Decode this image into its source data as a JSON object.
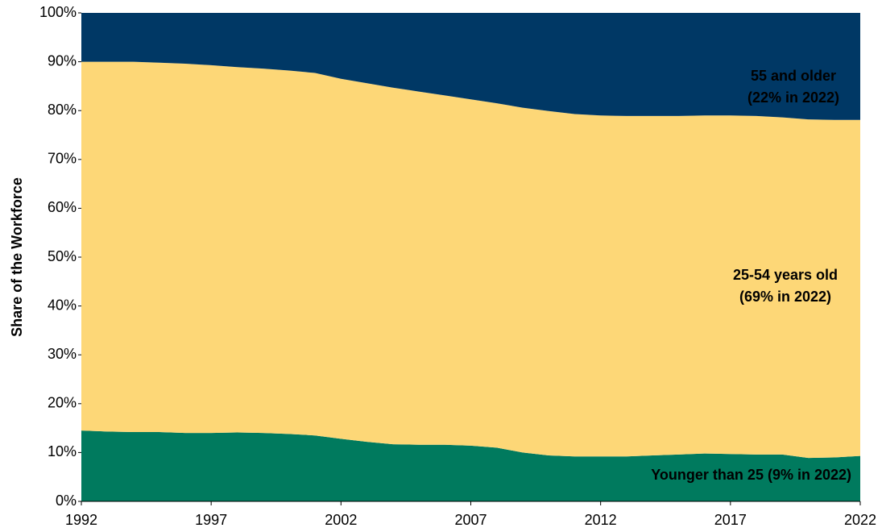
{
  "chart_data": {
    "type": "stacked_area",
    "y_label": "Share of the Workforce",
    "x": [
      1992,
      1993,
      1994,
      1995,
      1996,
      1997,
      1998,
      1999,
      2000,
      2001,
      2002,
      2003,
      2004,
      2005,
      2006,
      2007,
      2008,
      2009,
      2010,
      2011,
      2012,
      2013,
      2014,
      2015,
      2016,
      2017,
      2018,
      2019,
      2020,
      2021,
      2022
    ],
    "series": [
      {
        "name": "Younger than 25",
        "color": "#007a5e",
        "annotation": "(9% in 2022)",
        "values": [
          14.5,
          14.3,
          14.2,
          14.2,
          14.0,
          14.0,
          14.1,
          14.0,
          13.8,
          13.5,
          12.8,
          12.2,
          11.7,
          11.6,
          11.6,
          11.4,
          11.0,
          10.0,
          9.4,
          9.2,
          9.2,
          9.2,
          9.4,
          9.6,
          9.8,
          9.7,
          9.6,
          9.6,
          8.9,
          9.0,
          9.3
        ]
      },
      {
        "name": "25-54 years old",
        "color": "#fdd777",
        "annotation": "(69% in 2022)",
        "values": [
          75.5,
          75.7,
          75.8,
          75.6,
          75.6,
          75.3,
          74.8,
          74.6,
          74.4,
          74.2,
          73.7,
          73.4,
          73.0,
          72.3,
          71.5,
          70.9,
          70.5,
          70.6,
          70.5,
          70.1,
          69.8,
          69.7,
          69.5,
          69.3,
          69.2,
          69.3,
          69.3,
          69.0,
          69.3,
          69.1,
          68.8
        ]
      },
      {
        "name": "55 and older",
        "color": "#003865",
        "annotation": "(22% in 2022)",
        "values": [
          10.0,
          10.0,
          10.0,
          10.2,
          10.4,
          10.7,
          11.1,
          11.4,
          11.8,
          12.3,
          13.5,
          14.4,
          15.3,
          16.1,
          16.9,
          17.7,
          18.5,
          19.4,
          20.1,
          20.7,
          21.0,
          21.1,
          21.1,
          21.1,
          21.0,
          21.0,
          21.1,
          21.4,
          21.8,
          21.9,
          21.9
        ]
      }
    ],
    "xlim": [
      1992,
      2022
    ],
    "xticks": [
      1992,
      1997,
      2002,
      2007,
      2012,
      2017,
      2022
    ],
    "ylim": [
      0,
      100
    ],
    "yticks": [
      {
        "value": 0,
        "label": "0%"
      },
      {
        "value": 10,
        "label": "10%"
      },
      {
        "value": 20,
        "label": "20%"
      },
      {
        "value": 30,
        "label": "30%"
      },
      {
        "value": 40,
        "label": "40%"
      },
      {
        "value": 50,
        "label": "50%"
      },
      {
        "value": 60,
        "label": "60%"
      },
      {
        "value": 70,
        "label": "70%"
      },
      {
        "value": 80,
        "label": "80%"
      },
      {
        "value": 90,
        "label": "90%"
      },
      {
        "value": 100,
        "label": "100%"
      }
    ]
  }
}
